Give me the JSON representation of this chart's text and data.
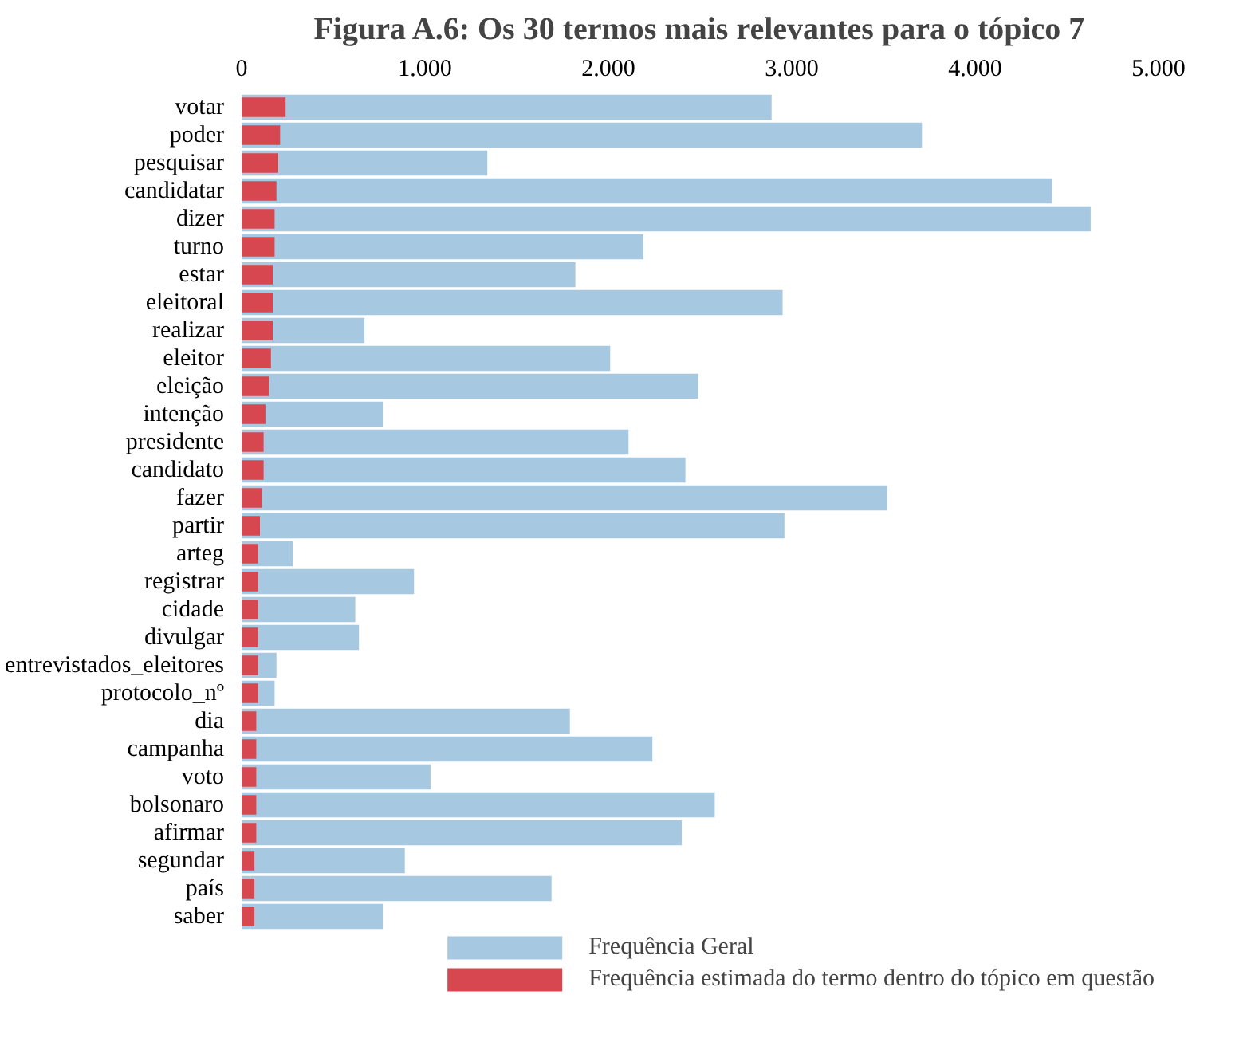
{
  "chart_data": {
    "type": "bar",
    "orientation": "horizontal",
    "title": "Figura A.6: Os 30 termos mais relevantes para o tópico 7",
    "categories": [
      "votar",
      "poder",
      "pesquisar",
      "candidatar",
      "dizer",
      "turno",
      "estar",
      "eleitoral",
      "realizar",
      "eleitor",
      "eleição",
      "intenção",
      "presidente",
      "candidato",
      "fazer",
      "partir",
      "arteg",
      "registrar",
      "cidade",
      "divulgar",
      "entrevistados_eleitores",
      "protocolo_nº",
      "dia",
      "campanha",
      "voto",
      "bolsonaro",
      "afirmar",
      "segundar",
      "país",
      "saber"
    ],
    "series": [
      {
        "name": "Frequência Geral",
        "color": "#a6c8e0",
        "values": [
          2890,
          3710,
          1340,
          4420,
          4630,
          2190,
          1820,
          2950,
          670,
          2010,
          2490,
          770,
          2110,
          2420,
          3520,
          2960,
          280,
          940,
          620,
          640,
          190,
          180,
          1790,
          2240,
          1030,
          2580,
          2400,
          890,
          1690,
          770
        ]
      },
      {
        "name": "Frequência estimada do termo dentro do tópico em questão",
        "color": "#d6474f",
        "values": [
          240,
          210,
          200,
          190,
          180,
          180,
          170,
          170,
          170,
          160,
          150,
          130,
          120,
          120,
          110,
          100,
          90,
          90,
          90,
          90,
          90,
          90,
          80,
          80,
          80,
          80,
          80,
          70,
          70,
          70
        ]
      }
    ],
    "xlim": [
      0,
      5000
    ],
    "xticks": [
      {
        "value": 0,
        "label": "0"
      },
      {
        "value": 1000,
        "label": "1.000"
      },
      {
        "value": 2000,
        "label": "2.000"
      },
      {
        "value": 3000,
        "label": "3.000"
      },
      {
        "value": 4000,
        "label": "4.000"
      },
      {
        "value": 5000,
        "label": "5.000"
      }
    ],
    "grid": false,
    "legend": "bottom"
  }
}
